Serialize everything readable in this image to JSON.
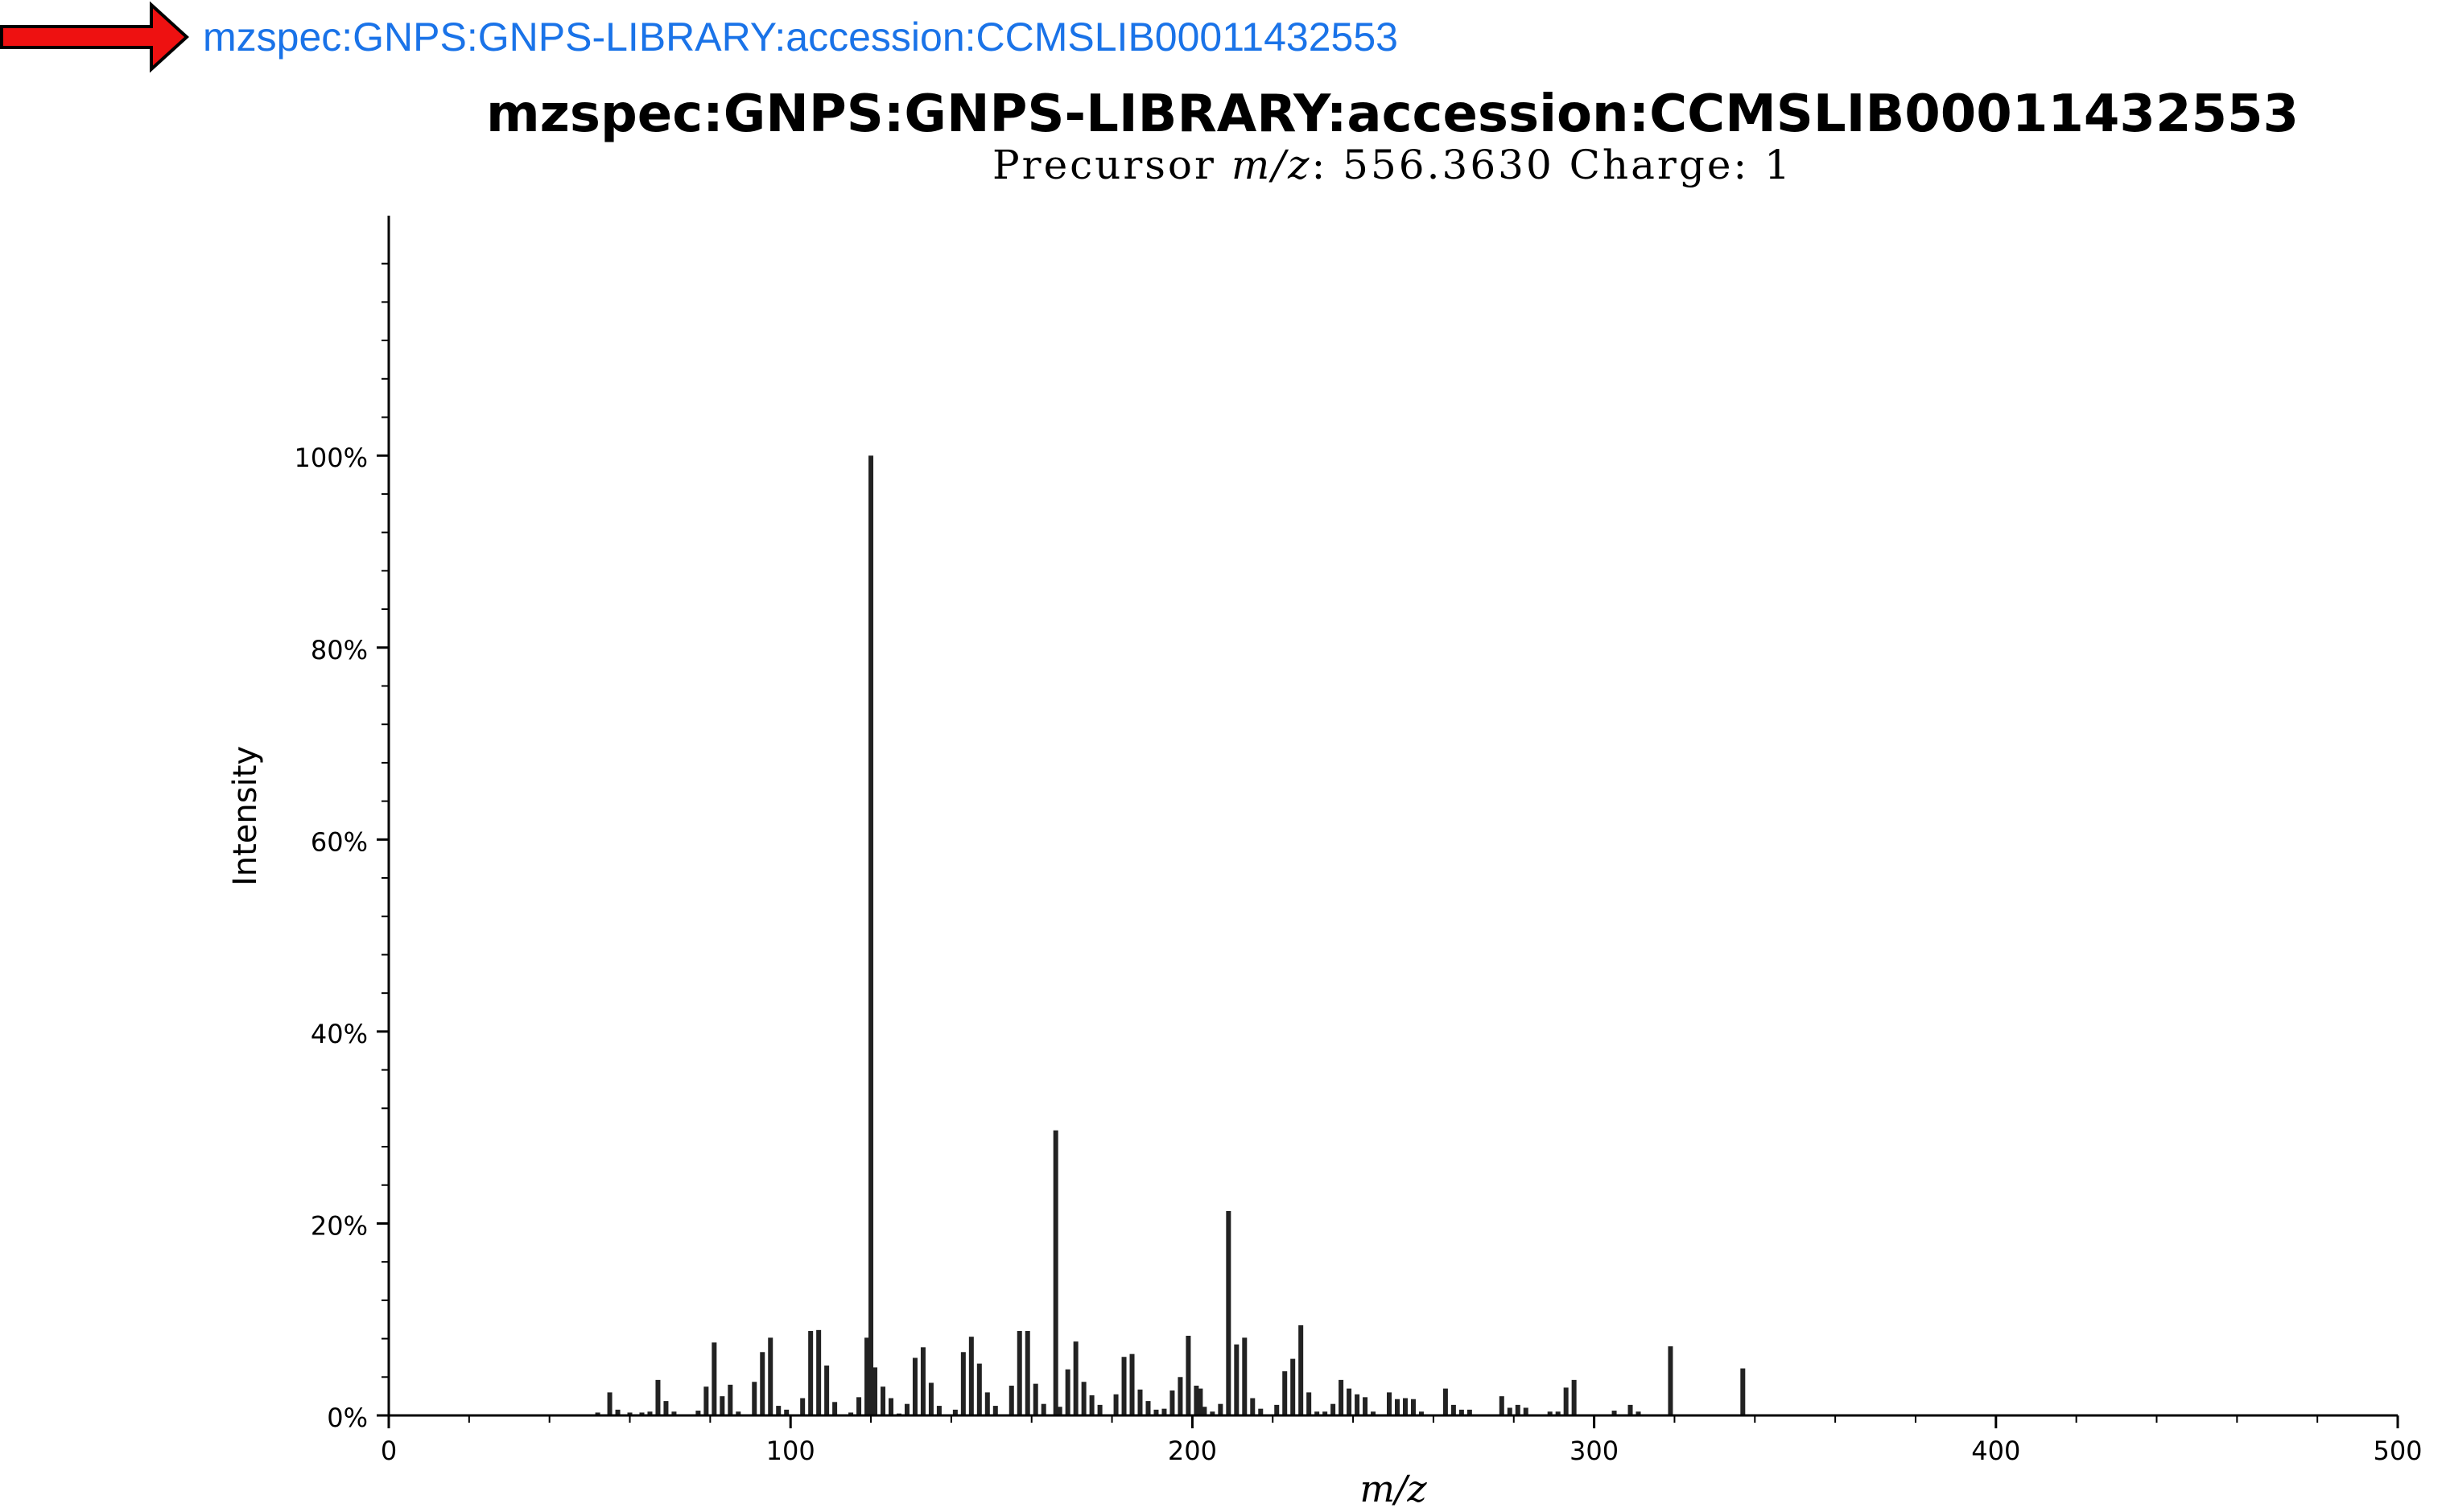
{
  "link": {
    "text": "mzspec:GNPS:GNPS-LIBRARY:accession:CCMSLIB00011432553",
    "arrow_color": "#ee1111",
    "arrow_icon": "right-arrow-icon"
  },
  "chart_data": {
    "type": "bar",
    "title": "mzspec:GNPS:GNPS-LIBRARY:accession:CCMSLIB00011432553",
    "subtitle": {
      "prefix": "Precursor ",
      "mz_symbol": "m/z",
      "rest": ": 556.3630 Charge: 1"
    },
    "xlabel": "m/z",
    "ylabel": "Intensity",
    "xlim": [
      0,
      500
    ],
    "ylim": [
      0,
      125
    ],
    "x_ticks": [
      0,
      100,
      200,
      300,
      400,
      500
    ],
    "y_ticks": [
      0,
      20,
      40,
      60,
      80,
      100
    ],
    "y_tick_labels": [
      "0%",
      "20%",
      "40%",
      "60%",
      "80%",
      "100%"
    ],
    "grid": false,
    "bar_color": "#222222",
    "peaks": [
      [
        52,
        0.3
      ],
      [
        55,
        2.4
      ],
      [
        57,
        0.6
      ],
      [
        60,
        0.3
      ],
      [
        63,
        0.3
      ],
      [
        65,
        0.4
      ],
      [
        67,
        3.7
      ],
      [
        69,
        1.5
      ],
      [
        71,
        0.4
      ],
      [
        77,
        0.5
      ],
      [
        79,
        3.0
      ],
      [
        81,
        7.6
      ],
      [
        83,
        2.0
      ],
      [
        85,
        3.2
      ],
      [
        87,
        0.4
      ],
      [
        91,
        3.5
      ],
      [
        93,
        6.6
      ],
      [
        95,
        8.1
      ],
      [
        97,
        1.0
      ],
      [
        99,
        0.6
      ],
      [
        103,
        1.8
      ],
      [
        105,
        8.8
      ],
      [
        107,
        8.9
      ],
      [
        109,
        5.2
      ],
      [
        111,
        1.4
      ],
      [
        115,
        0.3
      ],
      [
        117,
        1.9
      ],
      [
        119,
        8.1
      ],
      [
        120,
        100.0
      ],
      [
        121,
        5.0
      ],
      [
        123,
        3.0
      ],
      [
        125,
        1.8
      ],
      [
        127,
        0.2
      ],
      [
        129,
        1.2
      ],
      [
        131,
        6.0
      ],
      [
        133,
        7.1
      ],
      [
        135,
        3.4
      ],
      [
        137,
        1.0
      ],
      [
        141,
        0.6
      ],
      [
        143,
        6.6
      ],
      [
        145,
        8.2
      ],
      [
        147,
        5.4
      ],
      [
        149,
        2.4
      ],
      [
        151,
        1.0
      ],
      [
        155,
        3.1
      ],
      [
        157,
        8.8
      ],
      [
        159,
        8.8
      ],
      [
        161,
        3.3
      ],
      [
        163,
        1.2
      ],
      [
        166,
        29.7
      ],
      [
        167,
        0.9
      ],
      [
        169,
        4.8
      ],
      [
        171,
        7.7
      ],
      [
        173,
        3.5
      ],
      [
        175,
        2.1
      ],
      [
        177,
        1.1
      ],
      [
        181,
        2.2
      ],
      [
        183,
        6.1
      ],
      [
        185,
        6.4
      ],
      [
        187,
        2.7
      ],
      [
        189,
        1.5
      ],
      [
        191,
        0.6
      ],
      [
        193,
        0.7
      ],
      [
        195,
        2.6
      ],
      [
        197,
        4.0
      ],
      [
        199,
        8.3
      ],
      [
        201,
        3.1
      ],
      [
        202,
        2.8
      ],
      [
        203,
        0.9
      ],
      [
        205,
        0.4
      ],
      [
        207,
        1.2
      ],
      [
        209,
        21.3
      ],
      [
        211,
        7.4
      ],
      [
        213,
        8.1
      ],
      [
        215,
        1.8
      ],
      [
        217,
        0.7
      ],
      [
        221,
        1.1
      ],
      [
        223,
        4.6
      ],
      [
        225,
        5.9
      ],
      [
        227,
        9.4
      ],
      [
        229,
        2.4
      ],
      [
        231,
        0.4
      ],
      [
        233,
        0.4
      ],
      [
        235,
        1.2
      ],
      [
        237,
        3.7
      ],
      [
        239,
        2.8
      ],
      [
        241,
        2.2
      ],
      [
        243,
        1.9
      ],
      [
        245,
        0.4
      ],
      [
        249,
        2.4
      ],
      [
        251,
        1.7
      ],
      [
        253,
        1.8
      ],
      [
        255,
        1.7
      ],
      [
        257,
        0.4
      ],
      [
        263,
        2.8
      ],
      [
        265,
        1.1
      ],
      [
        267,
        0.6
      ],
      [
        269,
        0.6
      ],
      [
        277,
        2.0
      ],
      [
        279,
        0.8
      ],
      [
        281,
        1.1
      ],
      [
        283,
        0.8
      ],
      [
        289,
        0.4
      ],
      [
        291,
        0.4
      ],
      [
        293,
        2.9
      ],
      [
        295,
        3.7
      ],
      [
        305,
        0.5
      ],
      [
        309,
        1.1
      ],
      [
        311,
        0.4
      ],
      [
        319,
        7.2
      ],
      [
        337,
        4.9
      ]
    ]
  }
}
